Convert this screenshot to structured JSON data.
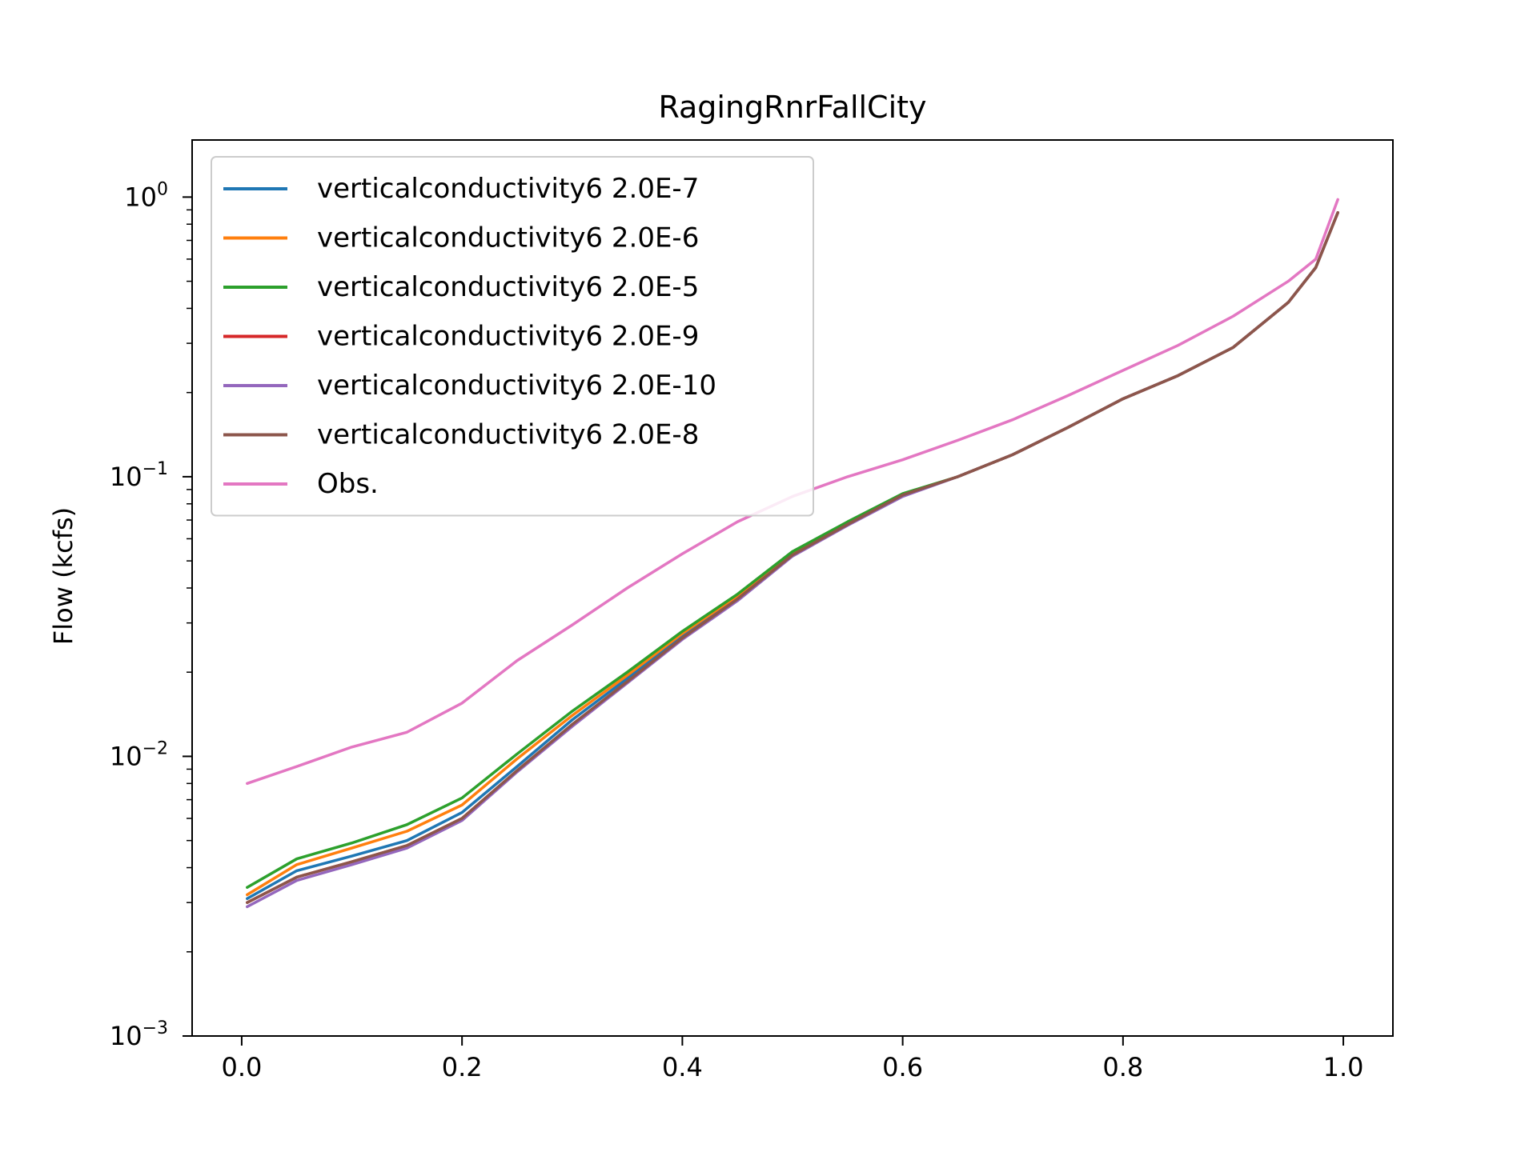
{
  "chart_data": {
    "type": "line",
    "title": "RagingRnrFallCity",
    "xlabel": "",
    "ylabel": "Flow (kcfs)",
    "yscale": "log",
    "xlim": [
      -0.045,
      1.045
    ],
    "ylim": [
      0.001,
      1.6
    ],
    "xticks": [
      {
        "value": 0.0,
        "label": "0.0"
      },
      {
        "value": 0.2,
        "label": "0.2"
      },
      {
        "value": 0.4,
        "label": "0.4"
      },
      {
        "value": 0.6,
        "label": "0.6"
      },
      {
        "value": 0.8,
        "label": "0.8"
      },
      {
        "value": 1.0,
        "label": "1.0"
      }
    ],
    "yticks": [
      {
        "value": 0.001,
        "base": "10",
        "exp": "−3"
      },
      {
        "value": 0.01,
        "base": "10",
        "exp": "−2"
      },
      {
        "value": 0.1,
        "base": "10",
        "exp": "−1"
      },
      {
        "value": 1,
        "base": "10",
        "exp": "0"
      }
    ],
    "grid": false,
    "legend_position": "upper-left",
    "x": [
      0.005,
      0.05,
      0.1,
      0.15,
      0.2,
      0.25,
      0.3,
      0.35,
      0.4,
      0.45,
      0.5,
      0.55,
      0.6,
      0.65,
      0.7,
      0.75,
      0.8,
      0.85,
      0.9,
      0.95,
      0.975,
      0.995
    ],
    "series": [
      {
        "name": "verticalconductivity6 2.0E-7",
        "color": "#1f77b4",
        "values": [
          0.0031,
          0.0039,
          0.0044,
          0.005,
          0.0063,
          0.0092,
          0.0135,
          0.019,
          0.027,
          0.037,
          0.053,
          0.068,
          0.086,
          0.1,
          0.12,
          0.15,
          0.19,
          0.23,
          0.29,
          0.42,
          0.56,
          0.88
        ]
      },
      {
        "name": "verticalconductivity6 2.0E-6",
        "color": "#ff7f0e",
        "values": [
          0.0032,
          0.0041,
          0.0047,
          0.0054,
          0.0067,
          0.0098,
          0.014,
          0.0195,
          0.0275,
          0.0375,
          0.053,
          0.068,
          0.086,
          0.1,
          0.12,
          0.15,
          0.19,
          0.23,
          0.29,
          0.42,
          0.56,
          0.88
        ]
      },
      {
        "name": "verticalconductivity6 2.0E-5",
        "color": "#2ca02c",
        "values": [
          0.0034,
          0.0043,
          0.0049,
          0.0057,
          0.0071,
          0.0102,
          0.0145,
          0.02,
          0.028,
          0.038,
          0.054,
          0.069,
          0.087,
          0.1,
          0.12,
          0.15,
          0.19,
          0.23,
          0.29,
          0.42,
          0.56,
          0.88
        ]
      },
      {
        "name": "verticalconductivity6 2.0E-9",
        "color": "#d62728",
        "values": [
          0.003,
          0.0037,
          0.0042,
          0.0048,
          0.006,
          0.0089,
          0.013,
          0.0185,
          0.0265,
          0.0365,
          0.0525,
          0.0675,
          0.086,
          0.1,
          0.12,
          0.15,
          0.19,
          0.23,
          0.29,
          0.42,
          0.56,
          0.88
        ]
      },
      {
        "name": "verticalconductivity6 2.0E-10",
        "color": "#9467bd",
        "values": [
          0.0029,
          0.0036,
          0.0041,
          0.0047,
          0.0059,
          0.0088,
          0.0128,
          0.0183,
          0.0262,
          0.036,
          0.052,
          0.067,
          0.085,
          0.1,
          0.12,
          0.15,
          0.19,
          0.23,
          0.29,
          0.42,
          0.56,
          0.88
        ]
      },
      {
        "name": "verticalconductivity6 2.0E-8",
        "color": "#8c564b",
        "values": [
          0.003,
          0.0037,
          0.0042,
          0.0048,
          0.006,
          0.0089,
          0.013,
          0.0185,
          0.0265,
          0.0365,
          0.0525,
          0.0675,
          0.086,
          0.1,
          0.12,
          0.15,
          0.19,
          0.23,
          0.29,
          0.42,
          0.56,
          0.88
        ]
      },
      {
        "name": "Obs.",
        "color": "#e377c2",
        "values": [
          0.008,
          0.0092,
          0.0108,
          0.0122,
          0.0155,
          0.022,
          0.0295,
          0.04,
          0.053,
          0.069,
          0.085,
          0.1,
          0.115,
          0.135,
          0.16,
          0.195,
          0.24,
          0.295,
          0.375,
          0.5,
          0.6,
          0.98
        ]
      }
    ]
  }
}
